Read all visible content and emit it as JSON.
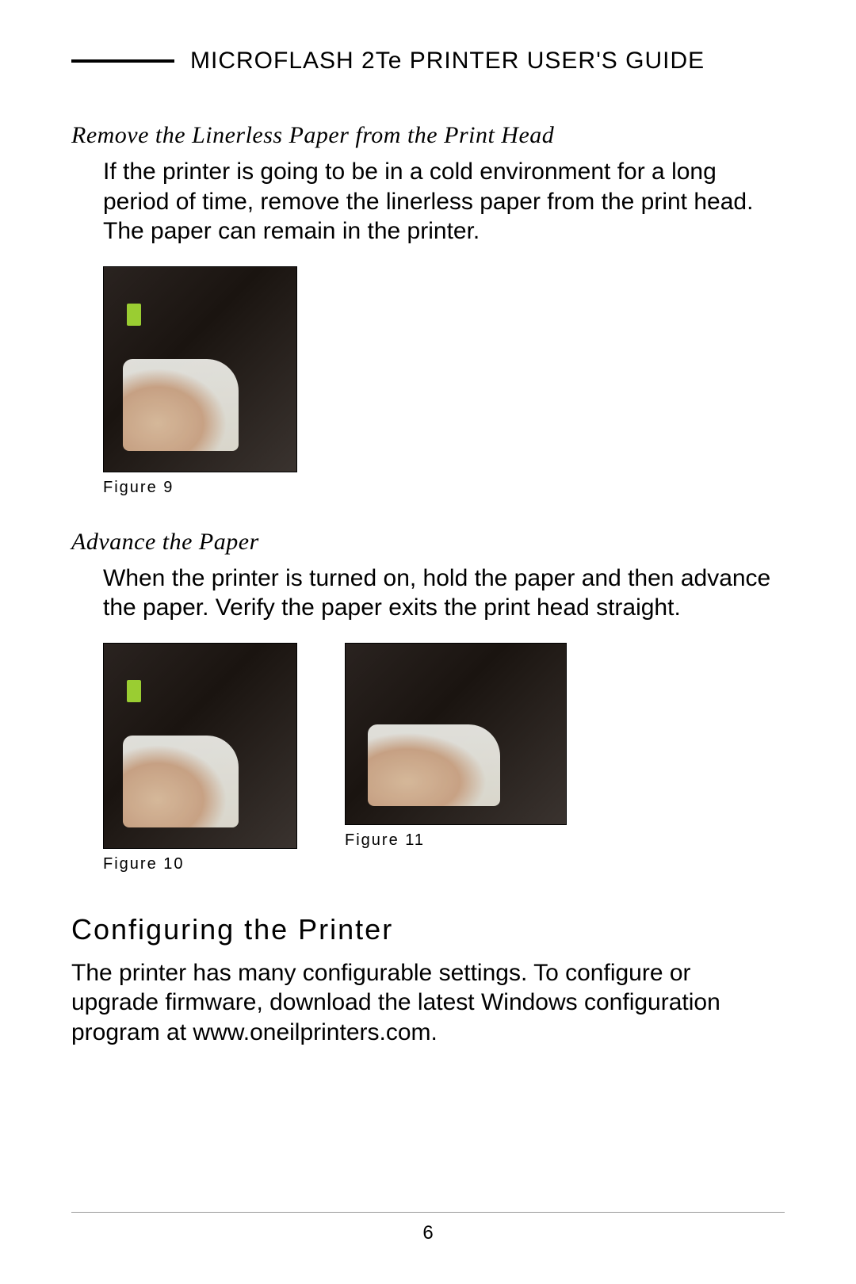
{
  "header": {
    "title": "MICROFLASH 2Te PRINTER USER'S GUIDE"
  },
  "section1": {
    "heading": "Remove the Linerless Paper from the Print Head",
    "body": "If the printer is going to be in a cold environment for a long period of time, remove the linerless paper from the print head. The paper can remain in the printer."
  },
  "figures": {
    "fig9": "Figure 9",
    "fig10": "Figure 10",
    "fig11": "Figure 11"
  },
  "section2": {
    "heading": "Advance the Paper",
    "body": "When the printer is turned on, hold the paper and then advance the paper. Verify the paper exits the print head straight."
  },
  "section3": {
    "heading": "Configuring the Printer",
    "body": "The printer has many configurable settings. To configure or upgrade firmware, download the latest Windows configuration program at www.oneilprinters.com."
  },
  "page_number": "6"
}
